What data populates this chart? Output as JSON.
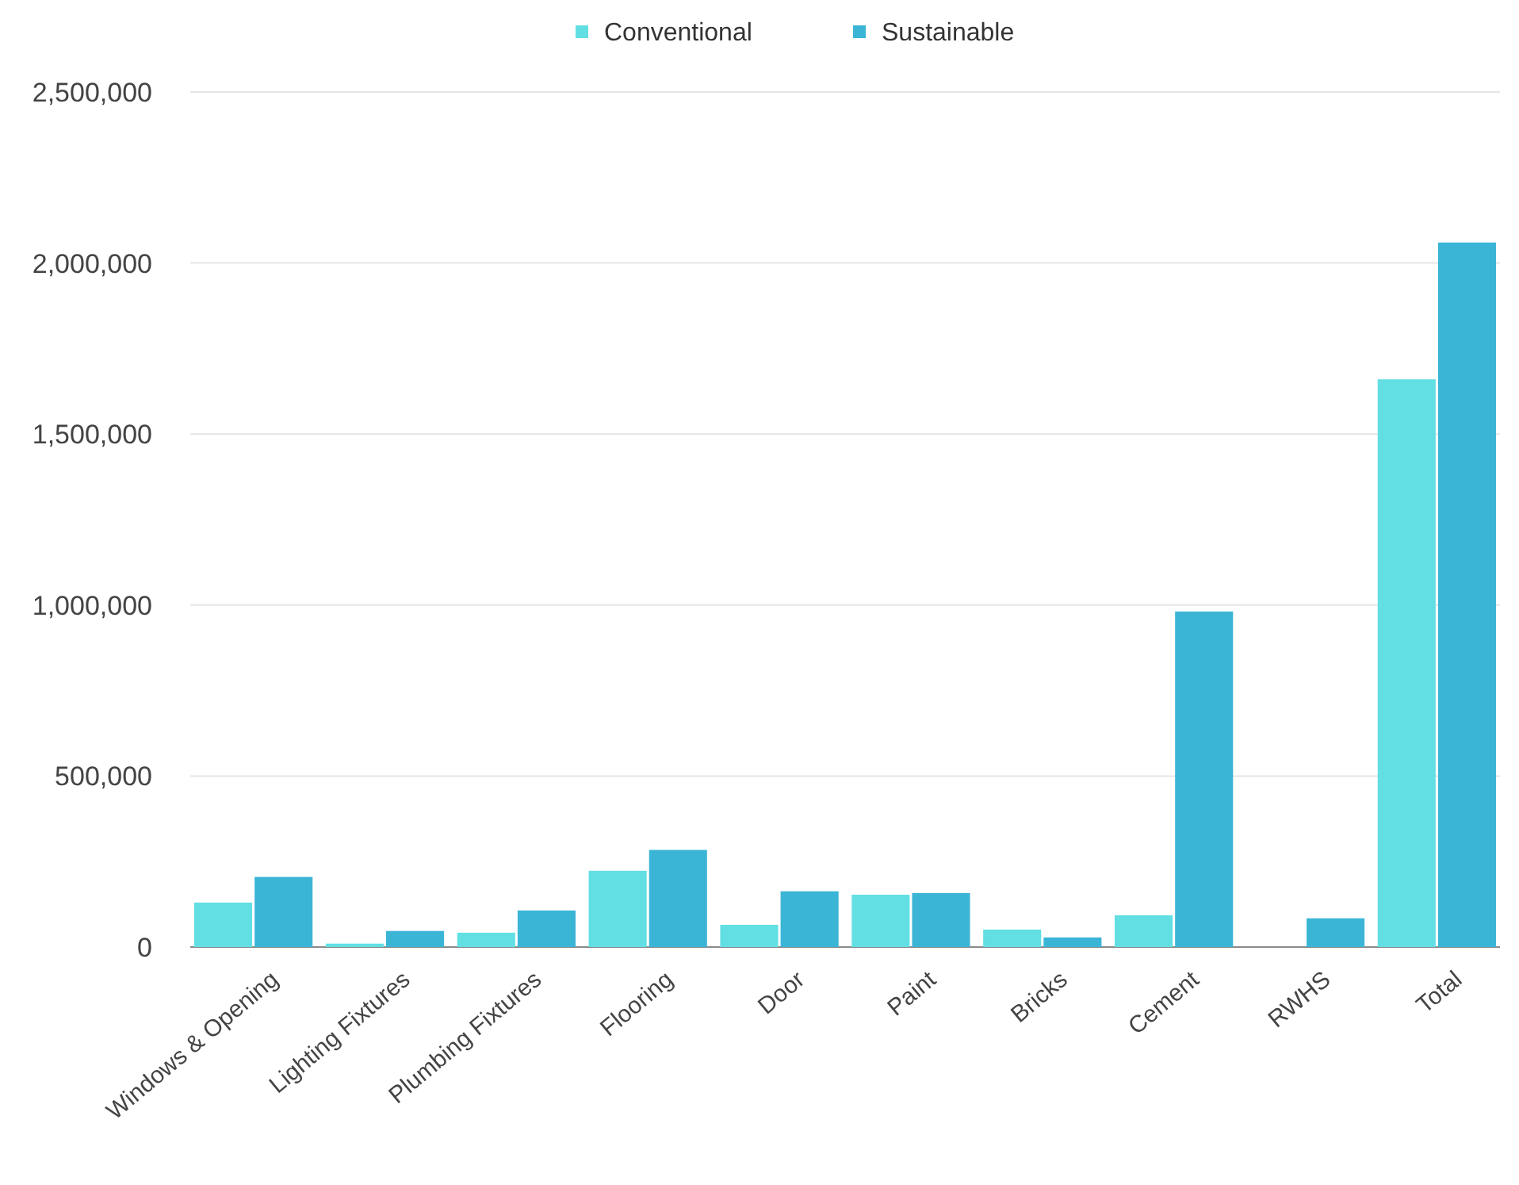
{
  "chart_data": {
    "type": "bar",
    "categories": [
      "Windows & Opening",
      "Lighting Fixtures",
      "Plumbing Fixtures",
      "Flooring",
      "Door",
      "Paint",
      "Bricks",
      "Cement",
      "RWHS",
      "Total"
    ],
    "series": [
      {
        "name": "Conventional",
        "color": "#62dfe3",
        "values": [
          130000,
          10000,
          42000,
          223000,
          65000,
          153000,
          51000,
          93000,
          0,
          1660000
        ]
      },
      {
        "name": "Sustainable",
        "color": "#3bb5d6",
        "values": [
          205000,
          47000,
          107000,
          284000,
          163000,
          158000,
          28000,
          981000,
          84000,
          2060000
        ]
      }
    ],
    "ylim": [
      0,
      2500000
    ],
    "yticks": [
      {
        "value": 0,
        "label": "0"
      },
      {
        "value": 500000,
        "label": "500,000"
      },
      {
        "value": 1000000,
        "label": "1,000,000"
      },
      {
        "value": 1500000,
        "label": "1,500,000"
      },
      {
        "value": 2000000,
        "label": "2,000,000"
      },
      {
        "value": 2500000,
        "label": "2,500,000"
      }
    ],
    "grid": "y",
    "legend": "top"
  }
}
